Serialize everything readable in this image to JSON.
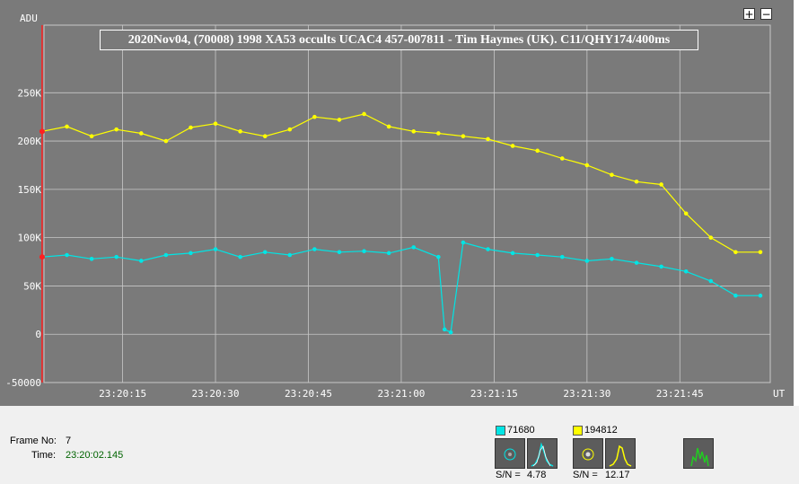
{
  "chart_data": {
    "type": "line",
    "title": "2020Nov04, (70008) 1998 XA53 occults UCAC4 457-007811 - Tim Haymes (UK).  C11/QHY174/400ms",
    "ylabel": "ADU",
    "xlabel": "UT",
    "ylim": [
      -50000,
      320000
    ],
    "y_ticks": [
      "-50000",
      "0",
      "50K",
      "100K",
      "150K",
      "200K",
      "250K"
    ],
    "y_tick_values": [
      -50000,
      0,
      50000,
      100000,
      150000,
      200000,
      250000
    ],
    "x_ticks": [
      "23:20:15",
      "23:20:30",
      "23:20:45",
      "23:21:00",
      "23:21:15",
      "23:21:30",
      "23:21:45"
    ],
    "x_range": [
      "23:20:02",
      "23:21:59"
    ],
    "grid": true,
    "series": [
      {
        "name": "194812",
        "color": "#ffff00",
        "x": [
          "23:20:02",
          "23:20:06",
          "23:20:10",
          "23:20:14",
          "23:20:18",
          "23:20:22",
          "23:20:26",
          "23:20:30",
          "23:20:34",
          "23:20:38",
          "23:20:42",
          "23:20:46",
          "23:20:50",
          "23:20:54",
          "23:20:58",
          "23:21:02",
          "23:21:06",
          "23:21:10",
          "23:21:14",
          "23:21:18",
          "23:21:22",
          "23:21:26",
          "23:21:30",
          "23:21:34",
          "23:21:38",
          "23:21:42",
          "23:21:46",
          "23:21:50",
          "23:21:54",
          "23:21:58"
        ],
        "y": [
          210000,
          215000,
          205000,
          212000,
          208000,
          200000,
          214000,
          218000,
          210000,
          205000,
          212000,
          225000,
          222000,
          228000,
          215000,
          210000,
          208000,
          205000,
          202000,
          195000,
          190000,
          182000,
          175000,
          165000,
          158000,
          155000,
          125000,
          100000,
          85000,
          85000
        ]
      },
      {
        "name": "71680",
        "color": "#00e5e5",
        "x": [
          "23:20:02",
          "23:20:06",
          "23:20:10",
          "23:20:14",
          "23:20:18",
          "23:20:22",
          "23:20:26",
          "23:20:30",
          "23:20:34",
          "23:20:38",
          "23:20:42",
          "23:20:46",
          "23:20:50",
          "23:20:54",
          "23:20:58",
          "23:21:02",
          "23:21:06",
          "23:21:07",
          "23:21:08",
          "23:21:10",
          "23:21:14",
          "23:21:18",
          "23:21:22",
          "23:21:26",
          "23:21:30",
          "23:21:34",
          "23:21:38",
          "23:21:42",
          "23:21:46",
          "23:21:50",
          "23:21:54",
          "23:21:58"
        ],
        "y": [
          80000,
          82000,
          78000,
          80000,
          76000,
          82000,
          84000,
          88000,
          80000,
          85000,
          82000,
          88000,
          85000,
          86000,
          84000,
          90000,
          80000,
          5000,
          2000,
          95000,
          88000,
          84000,
          82000,
          80000,
          76000,
          78000,
          74000,
          70000,
          65000,
          55000,
          40000,
          40000
        ]
      }
    ]
  },
  "chart": {
    "y_axis_label": "ADU",
    "x_axis_label": "UT"
  },
  "zoom": {
    "in_label": "+",
    "out_label": "−"
  },
  "status": {
    "frame_label": "Frame No:",
    "frame_value": "7",
    "time_label": "Time:",
    "time_value": "23:20:02.145",
    "target_star": {
      "id": "71680",
      "color": "#00e5e5",
      "snr_label": "S/N =",
      "snr_value": "4.78"
    },
    "comp_star": {
      "id": "194812",
      "color": "#ffff00",
      "snr_label": "S/N =",
      "snr_value": "12.17"
    }
  }
}
